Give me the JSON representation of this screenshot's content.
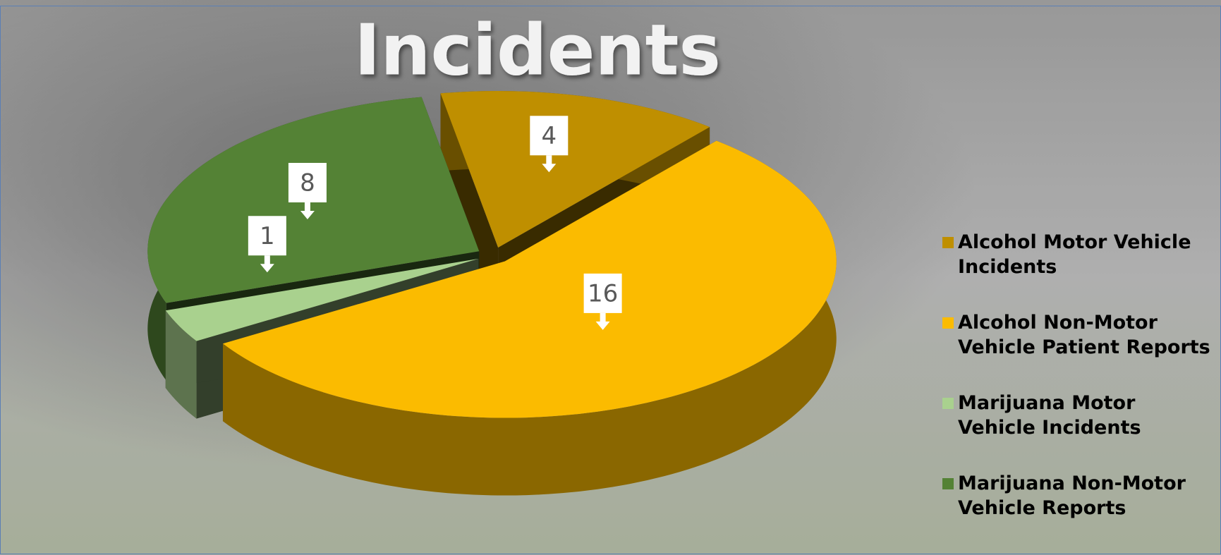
{
  "chart_data": {
    "type": "pie",
    "title": "Incidents",
    "categories": [
      "Alcohol Motor Vehicle Incidents",
      "Alcohol Non-Motor Vehicle Patient Reports",
      "Marijuana Motor Vehicle Incidents",
      "Marijuana Non-Motor Vehicle Reports"
    ],
    "values": [
      4,
      16,
      1,
      8
    ],
    "colors": [
      "#bf8f00",
      "#fbbb00",
      "#a9d18e",
      "#548235"
    ],
    "legend": "right"
  }
}
